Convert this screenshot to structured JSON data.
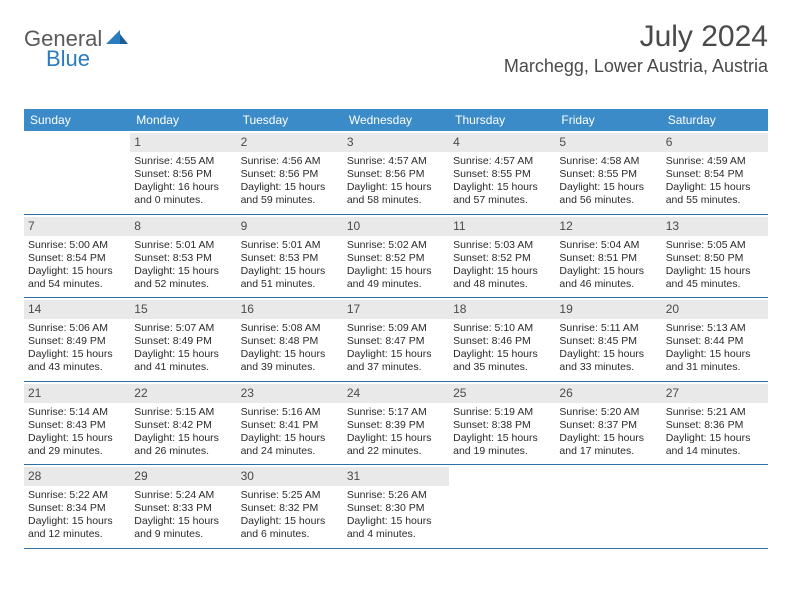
{
  "logo": {
    "word1": "General",
    "word2": "Blue"
  },
  "title": "July 2024",
  "location": "Marchegg, Lower Austria, Austria",
  "colors": {
    "header_bg": "#3b8bc9",
    "header_text": "#ffffff",
    "daynum_bg": "#e9e9e9",
    "week_border": "#2f6fa8",
    "body_text": "#2a2a2a",
    "title_text": "#4a4a4a",
    "logo_gray": "#5a5a5a",
    "logo_blue": "#2b7bbf"
  },
  "day_headers": [
    "Sunday",
    "Monday",
    "Tuesday",
    "Wednesday",
    "Thursday",
    "Friday",
    "Saturday"
  ],
  "weeks": [
    [
      null,
      {
        "n": "1",
        "sr": "Sunrise: 4:55 AM",
        "ss": "Sunset: 8:56 PM",
        "d1": "Daylight: 16 hours",
        "d2": "and 0 minutes."
      },
      {
        "n": "2",
        "sr": "Sunrise: 4:56 AM",
        "ss": "Sunset: 8:56 PM",
        "d1": "Daylight: 15 hours",
        "d2": "and 59 minutes."
      },
      {
        "n": "3",
        "sr": "Sunrise: 4:57 AM",
        "ss": "Sunset: 8:56 PM",
        "d1": "Daylight: 15 hours",
        "d2": "and 58 minutes."
      },
      {
        "n": "4",
        "sr": "Sunrise: 4:57 AM",
        "ss": "Sunset: 8:55 PM",
        "d1": "Daylight: 15 hours",
        "d2": "and 57 minutes."
      },
      {
        "n": "5",
        "sr": "Sunrise: 4:58 AM",
        "ss": "Sunset: 8:55 PM",
        "d1": "Daylight: 15 hours",
        "d2": "and 56 minutes."
      },
      {
        "n": "6",
        "sr": "Sunrise: 4:59 AM",
        "ss": "Sunset: 8:54 PM",
        "d1": "Daylight: 15 hours",
        "d2": "and 55 minutes."
      }
    ],
    [
      {
        "n": "7",
        "sr": "Sunrise: 5:00 AM",
        "ss": "Sunset: 8:54 PM",
        "d1": "Daylight: 15 hours",
        "d2": "and 54 minutes."
      },
      {
        "n": "8",
        "sr": "Sunrise: 5:01 AM",
        "ss": "Sunset: 8:53 PM",
        "d1": "Daylight: 15 hours",
        "d2": "and 52 minutes."
      },
      {
        "n": "9",
        "sr": "Sunrise: 5:01 AM",
        "ss": "Sunset: 8:53 PM",
        "d1": "Daylight: 15 hours",
        "d2": "and 51 minutes."
      },
      {
        "n": "10",
        "sr": "Sunrise: 5:02 AM",
        "ss": "Sunset: 8:52 PM",
        "d1": "Daylight: 15 hours",
        "d2": "and 49 minutes."
      },
      {
        "n": "11",
        "sr": "Sunrise: 5:03 AM",
        "ss": "Sunset: 8:52 PM",
        "d1": "Daylight: 15 hours",
        "d2": "and 48 minutes."
      },
      {
        "n": "12",
        "sr": "Sunrise: 5:04 AM",
        "ss": "Sunset: 8:51 PM",
        "d1": "Daylight: 15 hours",
        "d2": "and 46 minutes."
      },
      {
        "n": "13",
        "sr": "Sunrise: 5:05 AM",
        "ss": "Sunset: 8:50 PM",
        "d1": "Daylight: 15 hours",
        "d2": "and 45 minutes."
      }
    ],
    [
      {
        "n": "14",
        "sr": "Sunrise: 5:06 AM",
        "ss": "Sunset: 8:49 PM",
        "d1": "Daylight: 15 hours",
        "d2": "and 43 minutes."
      },
      {
        "n": "15",
        "sr": "Sunrise: 5:07 AM",
        "ss": "Sunset: 8:49 PM",
        "d1": "Daylight: 15 hours",
        "d2": "and 41 minutes."
      },
      {
        "n": "16",
        "sr": "Sunrise: 5:08 AM",
        "ss": "Sunset: 8:48 PM",
        "d1": "Daylight: 15 hours",
        "d2": "and 39 minutes."
      },
      {
        "n": "17",
        "sr": "Sunrise: 5:09 AM",
        "ss": "Sunset: 8:47 PM",
        "d1": "Daylight: 15 hours",
        "d2": "and 37 minutes."
      },
      {
        "n": "18",
        "sr": "Sunrise: 5:10 AM",
        "ss": "Sunset: 8:46 PM",
        "d1": "Daylight: 15 hours",
        "d2": "and 35 minutes."
      },
      {
        "n": "19",
        "sr": "Sunrise: 5:11 AM",
        "ss": "Sunset: 8:45 PM",
        "d1": "Daylight: 15 hours",
        "d2": "and 33 minutes."
      },
      {
        "n": "20",
        "sr": "Sunrise: 5:13 AM",
        "ss": "Sunset: 8:44 PM",
        "d1": "Daylight: 15 hours",
        "d2": "and 31 minutes."
      }
    ],
    [
      {
        "n": "21",
        "sr": "Sunrise: 5:14 AM",
        "ss": "Sunset: 8:43 PM",
        "d1": "Daylight: 15 hours",
        "d2": "and 29 minutes."
      },
      {
        "n": "22",
        "sr": "Sunrise: 5:15 AM",
        "ss": "Sunset: 8:42 PM",
        "d1": "Daylight: 15 hours",
        "d2": "and 26 minutes."
      },
      {
        "n": "23",
        "sr": "Sunrise: 5:16 AM",
        "ss": "Sunset: 8:41 PM",
        "d1": "Daylight: 15 hours",
        "d2": "and 24 minutes."
      },
      {
        "n": "24",
        "sr": "Sunrise: 5:17 AM",
        "ss": "Sunset: 8:39 PM",
        "d1": "Daylight: 15 hours",
        "d2": "and 22 minutes."
      },
      {
        "n": "25",
        "sr": "Sunrise: 5:19 AM",
        "ss": "Sunset: 8:38 PM",
        "d1": "Daylight: 15 hours",
        "d2": "and 19 minutes."
      },
      {
        "n": "26",
        "sr": "Sunrise: 5:20 AM",
        "ss": "Sunset: 8:37 PM",
        "d1": "Daylight: 15 hours",
        "d2": "and 17 minutes."
      },
      {
        "n": "27",
        "sr": "Sunrise: 5:21 AM",
        "ss": "Sunset: 8:36 PM",
        "d1": "Daylight: 15 hours",
        "d2": "and 14 minutes."
      }
    ],
    [
      {
        "n": "28",
        "sr": "Sunrise: 5:22 AM",
        "ss": "Sunset: 8:34 PM",
        "d1": "Daylight: 15 hours",
        "d2": "and 12 minutes."
      },
      {
        "n": "29",
        "sr": "Sunrise: 5:24 AM",
        "ss": "Sunset: 8:33 PM",
        "d1": "Daylight: 15 hours",
        "d2": "and 9 minutes."
      },
      {
        "n": "30",
        "sr": "Sunrise: 5:25 AM",
        "ss": "Sunset: 8:32 PM",
        "d1": "Daylight: 15 hours",
        "d2": "and 6 minutes."
      },
      {
        "n": "31",
        "sr": "Sunrise: 5:26 AM",
        "ss": "Sunset: 8:30 PM",
        "d1": "Daylight: 15 hours",
        "d2": "and 4 minutes."
      },
      null,
      null,
      null
    ]
  ]
}
